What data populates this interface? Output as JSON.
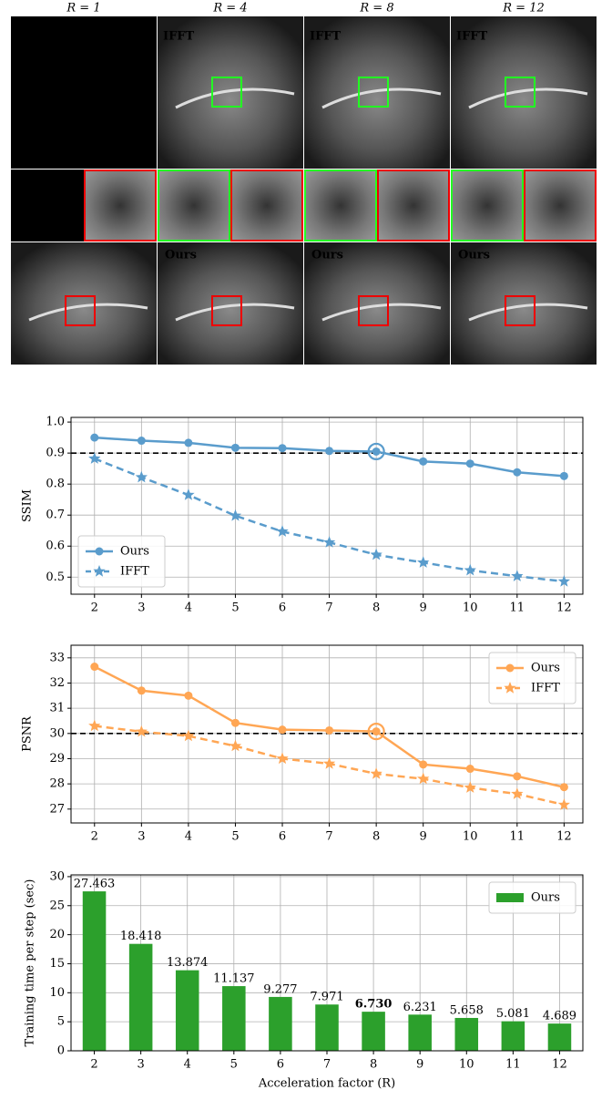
{
  "image_grid": {
    "column_titles": [
      "R = 1",
      "R = 4",
      "R = 8",
      "R = 12"
    ],
    "top_label": "IFFT",
    "bottom_label": "Ours"
  },
  "chart_data": [
    {
      "type": "line",
      "ylabel": "SSIM",
      "x": [
        2,
        3,
        4,
        5,
        6,
        7,
        8,
        9,
        10,
        11,
        12
      ],
      "xlim": [
        1.5,
        12.4
      ],
      "xticks": [
        2,
        3,
        4,
        5,
        6,
        7,
        8,
        9,
        10,
        11,
        12
      ],
      "ylim": [
        0.445,
        1.015
      ],
      "yticks": [
        0.5,
        0.6,
        0.7,
        0.8,
        0.9,
        {
          "value": 1,
          "label": "1.0"
        }
      ],
      "grid": true,
      "hline": 0.9,
      "highlight_x": 8,
      "legend": "lower left",
      "series": [
        {
          "name": "Ours",
          "color": "#5a9ccc",
          "linestyle": "solid",
          "marker": "circle",
          "values": [
            0.95,
            0.94,
            0.933,
            0.917,
            0.916,
            0.907,
            0.905,
            0.873,
            0.866,
            0.838,
            0.826
          ]
        },
        {
          "name": "IFFT",
          "color": "#5a9ccc",
          "linestyle": "dashed",
          "marker": "star",
          "values": [
            0.882,
            0.822,
            0.765,
            0.698,
            0.647,
            0.612,
            0.572,
            0.547,
            0.522,
            0.503,
            0.486
          ]
        }
      ]
    },
    {
      "type": "line",
      "ylabel": "PSNR",
      "x": [
        2,
        3,
        4,
        5,
        6,
        7,
        8,
        9,
        10,
        11,
        12
      ],
      "xlim": [
        1.5,
        12.4
      ],
      "xticks": [
        2,
        3,
        4,
        5,
        6,
        7,
        8,
        9,
        10,
        11,
        12
      ],
      "ylim": [
        26.45,
        33.5
      ],
      "yticks": [
        27,
        28,
        29,
        30,
        31,
        32,
        33
      ],
      "grid": true,
      "hline": 30,
      "highlight_x": 8,
      "legend": "upper right",
      "series": [
        {
          "name": "Ours",
          "color": "#ffa654",
          "linestyle": "solid",
          "marker": "circle",
          "values": [
            32.65,
            31.7,
            31.5,
            30.42,
            30.15,
            30.12,
            30.08,
            28.77,
            28.6,
            28.3,
            27.87
          ]
        },
        {
          "name": "IFFT",
          "color": "#ffa654",
          "linestyle": "dashed",
          "marker": "star",
          "values": [
            30.3,
            30.07,
            29.9,
            29.5,
            29.0,
            28.8,
            28.4,
            28.2,
            27.85,
            27.6,
            27.17
          ]
        }
      ]
    },
    {
      "type": "bar",
      "ylabel": "Training time per step (sec)",
      "xlabel": "Acceleration factor (R)",
      "categories": [
        "2",
        "3",
        "4",
        "5",
        "6",
        "7",
        "8",
        "9",
        "10",
        "11",
        "12"
      ],
      "ylim": [
        0,
        30.3
      ],
      "yticks": [
        0,
        5,
        10,
        15,
        20,
        25,
        30
      ],
      "grid": true,
      "legend": "upper right",
      "emphasized_categories": [
        "8"
      ],
      "series": [
        {
          "name": "Ours",
          "color": "#2ca02c",
          "values": [
            27.463,
            18.418,
            13.874,
            11.137,
            9.277,
            7.971,
            6.73,
            6.231,
            5.658,
            5.081,
            4.689
          ],
          "value_labels": [
            "27.463",
            "18.418",
            "13.874",
            "11.137",
            "9.277",
            "7.971",
            "6.730",
            "6.231",
            "5.658",
            "5.081",
            "4.689"
          ]
        }
      ]
    }
  ]
}
